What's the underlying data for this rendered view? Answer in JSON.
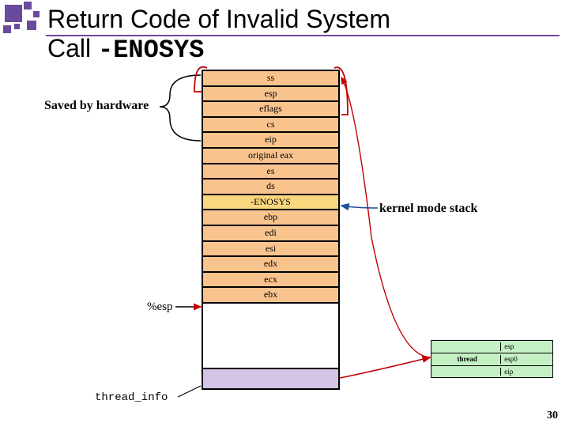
{
  "title_line1": "Return Code of Invalid System",
  "title_line2_a": "Call  ",
  "title_line2_b": "-ENOSYS",
  "labels": {
    "saved": "Saved by hardware",
    "esp": "%esp",
    "kernel": "kernel mode stack",
    "threadinfo": "thread_info",
    "pagenum": "30"
  },
  "stack": {
    "rows": [
      {
        "text": "ss",
        "bg": "#f9c38d"
      },
      {
        "text": "esp",
        "bg": "#f9c38d"
      },
      {
        "text": "eflags",
        "bg": "#f9c38d"
      },
      {
        "text": "cs",
        "bg": "#f9c38d"
      },
      {
        "text": "eip",
        "bg": "#f9c38d"
      },
      {
        "text": "original eax",
        "bg": "#f9c38d"
      },
      {
        "text": "es",
        "bg": "#f9c38d"
      },
      {
        "text": "ds",
        "bg": "#f9c38d"
      },
      {
        "text": "-ENOSYS",
        "bg": "#f9d77e"
      },
      {
        "text": "ebp",
        "bg": "#f9c38d"
      },
      {
        "text": "edi",
        "bg": "#f9c38d"
      },
      {
        "text": "esi",
        "bg": "#f9c38d"
      },
      {
        "text": "edx",
        "bg": "#f9c38d"
      },
      {
        "text": "ecx",
        "bg": "#f9c38d"
      },
      {
        "text": "ebx",
        "bg": "#f9c38d"
      }
    ],
    "bottom_bg": "#ffffff",
    "threadinfo_bg": "#d4c4e8"
  },
  "task_struct": {
    "bg": "#c4f0c4",
    "rows": [
      {
        "l": "",
        "r": "esp"
      },
      {
        "l": "thread",
        "r": "esp0"
      },
      {
        "l": "",
        "r": "eip"
      }
    ]
  },
  "colors": {
    "accent": "#6a4a9c",
    "arrow_red": "#c00000",
    "arrow_blue": "#1f4e9c"
  }
}
